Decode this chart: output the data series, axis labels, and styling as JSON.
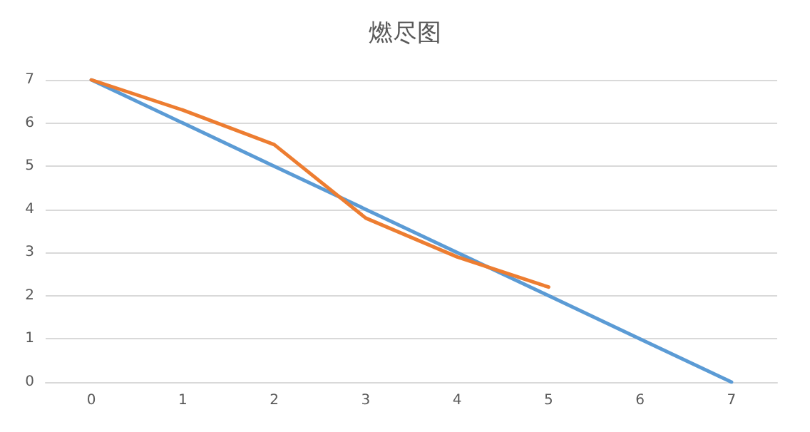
{
  "chart_data": {
    "type": "line",
    "title": "燃尽图",
    "categories": [
      "0",
      "1",
      "2",
      "3",
      "4",
      "5",
      "6",
      "7"
    ],
    "series": [
      {
        "color": "#5b9bd5",
        "values": [
          7,
          6,
          5,
          4,
          3,
          2,
          1,
          0
        ]
      },
      {
        "color": "#ed7d31",
        "values": [
          7,
          6.3,
          5.5,
          3.8,
          2.9,
          2.2,
          null,
          null
        ]
      }
    ],
    "ylim": [
      0,
      7
    ],
    "yticks": [
      0,
      1,
      2,
      3,
      4,
      5,
      6,
      7
    ],
    "grid": "y",
    "marker": "none",
    "line_style": "solid"
  }
}
